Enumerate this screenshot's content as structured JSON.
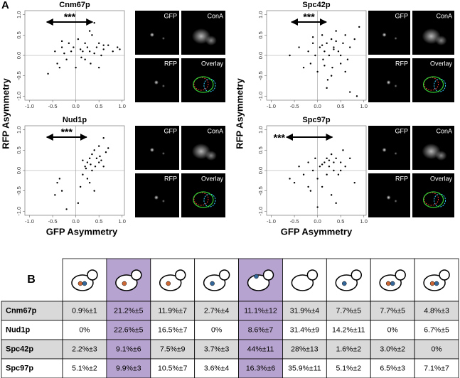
{
  "panel_a": {
    "label": "A",
    "image_labels": [
      "GFP",
      "ConA",
      "RFP",
      "Overlay"
    ],
    "groups": [
      {
        "y_label": "RFP Asymmetry",
        "x_label": "GFP Asymmetry",
        "plots": [
          {
            "title": "Cnm67p",
            "annotation": "***",
            "xlim": [
              -1.1,
              1.05
            ],
            "ylim": [
              -1.1,
              1.1
            ],
            "xticks": [
              {
                "value": -1,
                "label": "-1.0"
              },
              {
                "value": -0.5,
                "label": "-0.5"
              },
              {
                "value": 0,
                "label": "0.0"
              },
              {
                "value": 0.5,
                "label": "0.5"
              },
              {
                "value": 1,
                "label": "1.0"
              }
            ],
            "yticks": [
              {
                "value": -1,
                "label": "-1.0"
              },
              {
                "value": -0.5,
                "label": "-0.5"
              },
              {
                "value": 0,
                "label": "0.0"
              },
              {
                "value": 0.5,
                "label": "0.5"
              },
              {
                "value": 1,
                "label": "1.0"
              }
            ],
            "x": [
              -0.6,
              -0.45,
              -0.4,
              -0.35,
              -0.3,
              -0.25,
              -0.2,
              -0.15,
              -0.1,
              -0.05,
              0,
              0.05,
              0.1,
              0.12,
              0.15,
              0.2,
              0.25,
              0.3,
              0.32,
              0.35,
              0.4,
              0.45,
              0.5,
              0.55,
              0.6,
              0.7,
              0.8,
              0.9,
              0.95,
              0.5,
              0.3,
              0.2,
              -0.3,
              0.4,
              0.6
            ],
            "y": [
              -0.45,
              0.1,
              -0.2,
              -0.3,
              0.2,
              0.05,
              -0.1,
              0.3,
              0.1,
              0.2,
              -0.3,
              0.4,
              0.15,
              -0.05,
              0.1,
              0.3,
              0.2,
              0.1,
              -0.2,
              0.5,
              0.8,
              0.2,
              0.3,
              0,
              0.15,
              0.25,
              0.1,
              0.2,
              0.15,
              -0.3,
              0.6,
              -0.1,
              0.35,
              0.05,
              0.25
            ]
          },
          {
            "title": "Nud1p",
            "annotation": "***",
            "xlim": [
              -1.1,
              1.05
            ],
            "ylim": [
              -1.1,
              1.1
            ],
            "xticks": [
              {
                "value": -1,
                "label": "-1.0"
              },
              {
                "value": -0.5,
                "label": "-0.5"
              },
              {
                "value": 0,
                "label": "0.0"
              },
              {
                "value": 0.5,
                "label": "0.5"
              },
              {
                "value": 1,
                "label": "1.0"
              }
            ],
            "yticks": [
              {
                "value": -1,
                "label": "-1.0"
              },
              {
                "value": -0.5,
                "label": "-0.5"
              },
              {
                "value": 0,
                "label": "0.0"
              },
              {
                "value": 0.5,
                "label": "0.5"
              },
              {
                "value": 1,
                "label": "1.0"
              }
            ],
            "x": [
              -0.45,
              -0.4,
              -0.35,
              -0.3,
              0.05,
              0.1,
              0.15,
              0.2,
              0.22,
              0.25,
              0.3,
              0.32,
              0.35,
              0.4,
              0.42,
              0.45,
              0.5,
              0.52,
              0.55,
              0.6,
              0.65,
              0.7,
              0.3,
              0.4,
              0.5,
              0.25,
              0.35,
              0.15,
              -0.2,
              0.6
            ],
            "y": [
              -0.6,
              -0.3,
              -0.2,
              -0.5,
              -0.8,
              -0.4,
              -0.1,
              0.1,
              0.05,
              0.2,
              0.3,
              0.15,
              0.4,
              0.5,
              0.1,
              0.3,
              0.6,
              0.35,
              0.25,
              0.8,
              0.45,
              0.55,
              -0.3,
              -0.5,
              0.2,
              -0.2,
              0,
              0.25,
              -0.95,
              0.1
            ]
          }
        ]
      },
      {
        "y_label": "RFP Asymmetry",
        "x_label": "GFP Asymmetry",
        "plots": [
          {
            "title": "Spc42p",
            "annotation": "***",
            "xlim": [
              -1.1,
              1.05
            ],
            "ylim": [
              -1.1,
              1.1
            ],
            "xticks": [
              {
                "value": -1,
                "label": "-1.0"
              },
              {
                "value": -0.5,
                "label": "-0.5"
              },
              {
                "value": 0,
                "label": "0.0"
              },
              {
                "value": 0.5,
                "label": "0.5"
              },
              {
                "value": 1,
                "label": "1.0"
              }
            ],
            "yticks": [
              {
                "value": -1,
                "label": "-1.0"
              },
              {
                "value": -0.5,
                "label": "-0.5"
              },
              {
                "value": 0,
                "label": "0.0"
              },
              {
                "value": 0.5,
                "label": "0.5"
              },
              {
                "value": 1,
                "label": "1.0"
              }
            ],
            "x": [
              -0.6,
              -0.4,
              -0.3,
              -0.2,
              -0.15,
              -0.1,
              -0.05,
              0,
              0.05,
              0.1,
              0.12,
              0.15,
              0.2,
              0.22,
              0.25,
              0.3,
              0.32,
              0.35,
              0.4,
              0.45,
              0.5,
              0.55,
              0.6,
              0.65,
              0.7,
              0.8,
              0.85,
              0.9,
              0.2,
              0.1,
              0.3,
              0.5,
              0.6,
              -0.1,
              0.4,
              0.7,
              0.35,
              0.15
            ],
            "y": [
              0,
              0.2,
              -0.3,
              0.1,
              -0.2,
              0.3,
              0,
              -0.4,
              0.2,
              0.5,
              -0.1,
              0.1,
              0.3,
              -0.6,
              0,
              0.4,
              -0.3,
              0.2,
              0.6,
              0.1,
              -0.2,
              0.3,
              0.5,
              -0.1,
              0.2,
              0.4,
              -1,
              0.7,
              -0.8,
              0.25,
              -0.5,
              0,
              -0.4,
              0.45,
              0.35,
              -0.9,
              0.15,
              -0.25
            ]
          },
          {
            "title": "Spc97p",
            "annotation": "***",
            "xlim": [
              -1.1,
              1.05
            ],
            "ylim": [
              -1.1,
              1.1
            ],
            "xticks": [
              {
                "value": -1,
                "label": "-1.0"
              },
              {
                "value": -0.5,
                "label": "-0.5"
              },
              {
                "value": 0,
                "label": "0.0"
              },
              {
                "value": 0.5,
                "label": "0.5"
              },
              {
                "value": 1,
                "label": "1.0"
              }
            ],
            "yticks": [
              {
                "value": -1,
                "label": "-1.0"
              },
              {
                "value": -0.5,
                "label": "-0.5"
              },
              {
                "value": 0,
                "label": "0.0"
              },
              {
                "value": 0.5,
                "label": "0.5"
              },
              {
                "value": 1,
                "label": "1.0"
              }
            ],
            "x": [
              -0.6,
              -0.5,
              -0.4,
              -0.3,
              -0.2,
              -0.15,
              -0.1,
              -0.05,
              0,
              0.05,
              0.1,
              0.15,
              0.2,
              0.25,
              0.3,
              0.35,
              0.4,
              0.45,
              0.5,
              0.55,
              0.6,
              0.7,
              0.8,
              0.3,
              0.2,
              0.1,
              0.4,
              0.5,
              -0.2,
              0.25,
              0.35,
              0
            ],
            "y": [
              -0.2,
              -0.3,
              0.1,
              -0.1,
              0.2,
              -0.5,
              0,
              0.3,
              -0.2,
              0.1,
              -0.4,
              0.2,
              0.3,
              0.1,
              0.4,
              0,
              0.3,
              -0.1,
              0.2,
              0.5,
              0.1,
              0.3,
              -0.3,
              -0.6,
              -0.1,
              0.15,
              -0.8,
              0,
              -0.4,
              0.25,
              0.2,
              -0.9
            ]
          }
        ]
      }
    ]
  },
  "panel_b": {
    "label": "B",
    "rows": [
      {
        "name": "Cnm67p",
        "cells": [
          "0.9%±1",
          "21.2%±5",
          "11.9%±7",
          "2.7%±4",
          "11.1%±12",
          "31.9%±4",
          "7.7%±5",
          "7.7%±5",
          "4.8%±3"
        ]
      },
      {
        "name": "Nud1p",
        "cells": [
          "0%",
          "22.6%±5",
          "16.5%±7",
          "0%",
          "8.6%±7",
          "31.4%±9",
          "14.2%±11",
          "0%",
          "6.7%±5"
        ]
      },
      {
        "name": "Spc42p",
        "cells": [
          "2.2%±3",
          "9.1%±6",
          "7.5%±9",
          "3.7%±3",
          "44%±11",
          "28%±13",
          "1.6%±2",
          "3.0%±2",
          "0%"
        ]
      },
      {
        "name": "Spc97p",
        "cells": [
          "5.1%±2",
          "9.9%±3",
          "10.5%±7",
          "3.6%±4",
          "16.3%±6",
          "35.9%±11",
          "5.1%±2",
          "6.5%±3",
          "7.1%±7"
        ]
      }
    ]
  }
}
